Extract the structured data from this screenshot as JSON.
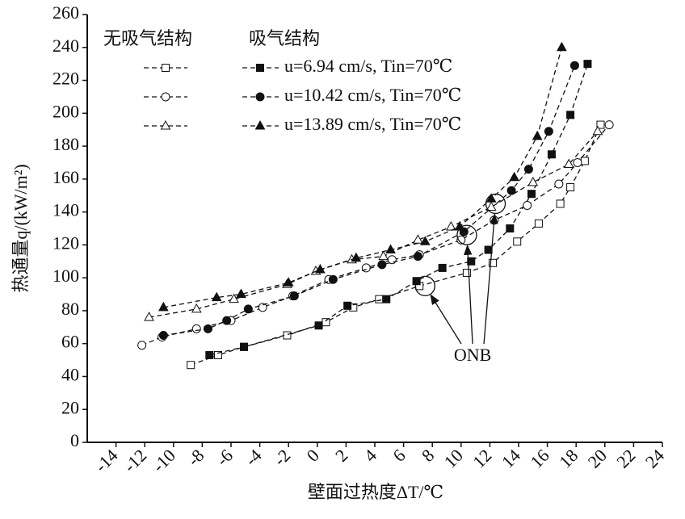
{
  "chart_data": {
    "type": "line",
    "xlabel": "壁面过热度ΔT/℃",
    "ylabel": "热通量q/(kW/m²)",
    "xlim": [
      -16,
      24
    ],
    "xticks": [
      -14,
      -12,
      -10,
      -8,
      -6,
      -4,
      -2,
      0,
      2,
      4,
      6,
      8,
      10,
      12,
      14,
      16,
      18,
      20,
      22,
      24
    ],
    "ylim": [
      0,
      260
    ],
    "yticks": [
      0,
      20,
      40,
      60,
      80,
      100,
      120,
      140,
      160,
      180,
      200,
      220,
      240,
      260
    ],
    "legend_groups": [
      "无吸气结构",
      "吸气结构"
    ],
    "color": "#111111",
    "series": [
      {
        "name": "u=6.94 cm/s, Tin=70℃",
        "marker": "square",
        "without": {
          "x": [
            -8.8,
            -6.9,
            -5.1,
            -2.1,
            0.6,
            2.5,
            4.3,
            7.1,
            10.4,
            12.2,
            13.9,
            15.4,
            16.9,
            17.6,
            18.6,
            19.7
          ],
          "y": [
            47,
            53,
            58,
            65,
            73,
            82,
            87,
            95,
            103,
            109,
            122,
            133,
            145,
            155,
            171,
            193
          ]
        },
        "with": {
          "x": [
            -7.5,
            -5.1,
            0.1,
            2.1,
            4.8,
            6.9,
            8.7,
            10.7,
            11.9,
            13.4,
            14.9,
            16.3,
            17.6,
            18.8
          ],
          "y": [
            53,
            58,
            71,
            83,
            87,
            98,
            106,
            110,
            117,
            130,
            151,
            175,
            199,
            230
          ]
        }
      },
      {
        "name": "u=10.42 cm/s, Tin=70℃",
        "marker": "circle",
        "without": {
          "x": [
            -12.2,
            -10.8,
            -8.4,
            -6,
            -3.8,
            -1.7,
            0.8,
            3.4,
            5.2,
            7.1,
            10,
            12.3,
            14.6,
            16.8,
            18.1,
            20.3
          ],
          "y": [
            59,
            64,
            69,
            74,
            82,
            89,
            99,
            106,
            111,
            114,
            123,
            135,
            144,
            157,
            170,
            193
          ]
        },
        "with": {
          "x": [
            -10.7,
            -7.6,
            -6.3,
            -4.8,
            -1.6,
            1.1,
            4.5,
            7,
            10.2,
            13.5,
            14.7,
            16.1,
            17.9
          ],
          "y": [
            65,
            69,
            74,
            81,
            89,
            99,
            108,
            113,
            128,
            153,
            166,
            189,
            229
          ]
        }
      },
      {
        "name": "u=13.89 cm/s, Tin=70℃",
        "marker": "triangle",
        "without": {
          "x": [
            -11.7,
            -8.4,
            -5.8,
            -2.1,
            -0.1,
            2.4,
            4.6,
            7,
            9.3,
            12.1,
            15,
            17.5,
            19.5
          ],
          "y": [
            76,
            81,
            87,
            96,
            104,
            111,
            113,
            123,
            131,
            143,
            158,
            169,
            189
          ]
        },
        "with": {
          "x": [
            -10.7,
            -7,
            -5.3,
            -2,
            0.2,
            2.7,
            5.1,
            7.5,
            9.9,
            12.1,
            13.7,
            15.3,
            17
          ],
          "y": [
            82,
            88,
            90,
            97,
            105,
            112,
            117,
            122,
            131,
            148,
            161,
            186,
            240
          ]
        }
      }
    ],
    "annotation": {
      "text": "ONB",
      "x": 10.8,
      "y": 52,
      "points": [
        {
          "x": 7.5,
          "y": 95
        },
        {
          "x": 10.4,
          "y": 126
        },
        {
          "x": 12.4,
          "y": 145
        }
      ]
    }
  }
}
